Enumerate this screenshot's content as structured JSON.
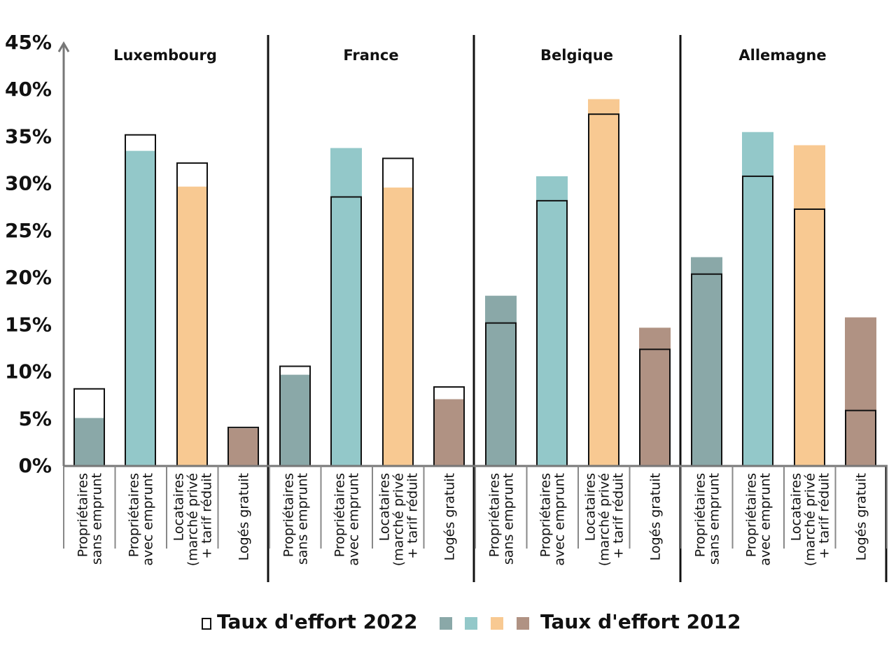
{
  "chart_data": {
    "type": "bar",
    "ylim": [
      0,
      45
    ],
    "yticks": [
      "0%",
      "5%",
      "10%",
      "15%",
      "20%",
      "25%",
      "30%",
      "35%",
      "40%",
      "45%"
    ],
    "groups": [
      "Luxembourg",
      "France",
      "Belgique",
      "Allemagne"
    ],
    "categories": [
      [
        "Propriétaires",
        "sans emprunt"
      ],
      [
        "Propriétaires",
        "avec emprunt"
      ],
      [
        "Locataires",
        "(marché privé",
        "+ tarif réduit"
      ],
      [
        "Logés gratuit"
      ]
    ],
    "series": [
      {
        "name": "Taux d'effort 2022",
        "values": [
          [
            8.2,
            35.2,
            32.2,
            4.1
          ],
          [
            10.6,
            28.6,
            32.7,
            8.4
          ],
          [
            15.2,
            28.2,
            37.4,
            12.4
          ],
          [
            20.4,
            30.8,
            27.3,
            5.9
          ]
        ]
      },
      {
        "name": "Taux d'effort 2012",
        "values": [
          [
            5.1,
            33.5,
            29.7,
            4.0
          ],
          [
            9.7,
            33.8,
            29.6,
            7.1
          ],
          [
            18.1,
            30.8,
            39.0,
            14.7
          ],
          [
            22.2,
            35.5,
            34.1,
            15.8
          ]
        ]
      }
    ],
    "colors": [
      "#8aa8a8",
      "#93c8c9",
      "#f8c992",
      "#b09283"
    ],
    "legend": {
      "label_2022": "Taux d'effort 2022",
      "label_2012": "Taux d'effort 2012",
      "placement": "bottom"
    }
  }
}
